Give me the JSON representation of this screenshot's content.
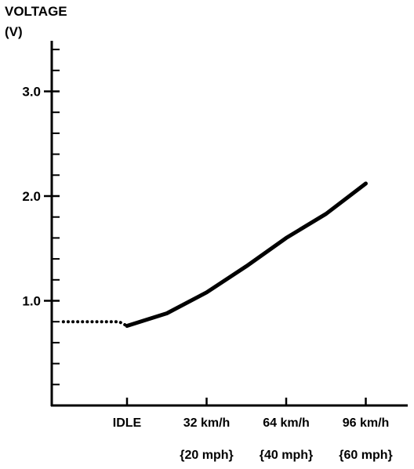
{
  "chart_data": {
    "type": "line",
    "ylabel_line1": "VOLTAGE",
    "ylabel_line2": "(V)",
    "ylim": [
      0,
      3.5
    ],
    "yticks": [
      {
        "value": 1.0,
        "label": "1.0"
      },
      {
        "value": 2.0,
        "label": "2.0"
      },
      {
        "value": 3.0,
        "label": "3.0"
      }
    ],
    "yminor_step": 0.2,
    "xcategories": [
      {
        "label": "IDLE",
        "sublabel": ""
      },
      {
        "label": "32 km/h",
        "sublabel": "{20 mph}"
      },
      {
        "label": "64 km/h",
        "sublabel": "{40 mph}"
      },
      {
        "label": "96 km/h",
        "sublabel": "{60 mph}"
      }
    ],
    "series": [
      {
        "style": "dotted",
        "points": [
          [
            -0.8,
            0.8
          ],
          [
            -0.1,
            0.8
          ],
          [
            0,
            0.76
          ]
        ]
      },
      {
        "style": "solid",
        "points": [
          [
            0,
            0.76
          ],
          [
            0.5,
            0.88
          ],
          [
            1,
            1.08
          ],
          [
            1.5,
            1.33
          ],
          [
            2,
            1.6
          ],
          [
            2.5,
            1.83
          ],
          [
            3,
            2.12
          ]
        ]
      }
    ],
    "grid": false,
    "legend": "none"
  }
}
